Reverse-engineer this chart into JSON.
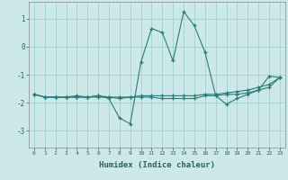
{
  "xlabel": "Humidex (Indice chaleur)",
  "bg_color": "#cce8e8",
  "grid_color": "#99cccc",
  "line_color": "#2a7a7a",
  "marker": "+",
  "xlim": [
    -0.5,
    23.5
  ],
  "ylim": [
    -3.6,
    1.6
  ],
  "xticks": [
    0,
    1,
    2,
    3,
    4,
    5,
    6,
    7,
    8,
    9,
    10,
    11,
    12,
    13,
    14,
    15,
    16,
    17,
    18,
    19,
    20,
    21,
    22,
    23
  ],
  "yticks": [
    -3,
    -2,
    -1,
    0,
    1
  ],
  "s1_x": [
    0,
    1,
    2,
    3,
    4,
    5,
    6,
    7,
    8,
    9,
    10,
    11,
    12,
    13,
    14,
    15,
    16,
    17,
    18,
    19,
    20,
    21,
    22,
    23
  ],
  "s1_y": [
    -1.7,
    -1.8,
    -1.8,
    -1.8,
    -1.8,
    -1.8,
    -1.75,
    -1.85,
    -2.55,
    -2.75,
    -0.55,
    0.65,
    0.5,
    -0.5,
    1.25,
    0.75,
    -0.2,
    -1.75,
    -2.05,
    -1.85,
    -1.7,
    -1.55,
    -1.05,
    -1.1
  ],
  "s2_x": [
    0,
    1,
    2,
    3,
    4,
    5,
    6,
    7,
    8,
    9,
    10,
    11,
    12,
    13,
    14,
    15,
    16,
    17,
    18,
    19,
    20,
    21,
    22,
    23
  ],
  "s2_y": [
    -1.7,
    -1.8,
    -1.8,
    -1.8,
    -1.75,
    -1.8,
    -1.75,
    -1.8,
    -1.85,
    -1.8,
    -1.75,
    -1.75,
    -1.75,
    -1.75,
    -1.75,
    -1.75,
    -1.7,
    -1.7,
    -1.65,
    -1.6,
    -1.55,
    -1.45,
    -1.35,
    -1.1
  ],
  "s3_x": [
    0,
    1,
    2,
    3,
    4,
    5,
    6,
    7,
    8,
    9,
    10,
    11,
    12,
    13,
    14,
    15,
    16,
    17,
    18,
    19,
    20,
    21,
    22,
    23
  ],
  "s3_y": [
    -1.7,
    -1.8,
    -1.8,
    -1.8,
    -1.8,
    -1.8,
    -1.8,
    -1.8,
    -1.8,
    -1.8,
    -1.8,
    -1.8,
    -1.85,
    -1.85,
    -1.85,
    -1.85,
    -1.75,
    -1.75,
    -1.7,
    -1.7,
    -1.65,
    -1.55,
    -1.45,
    -1.1
  ]
}
